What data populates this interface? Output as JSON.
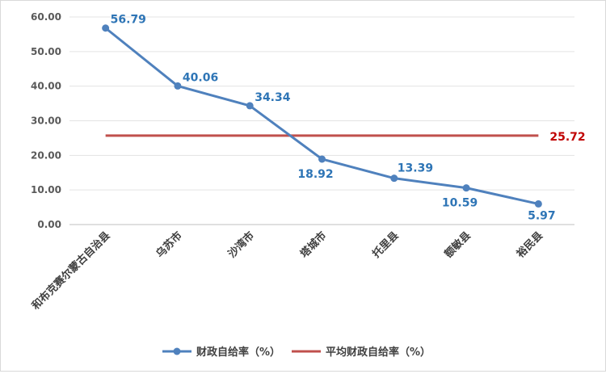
{
  "chart_data": {
    "type": "line",
    "categories": [
      "和布克赛尔蒙古自治县",
      "乌苏市",
      "沙湾市",
      "塔城市",
      "托里县",
      "额敏县",
      "裕民县"
    ],
    "series": [
      {
        "name": "财政自给率（%）",
        "values": [
          56.79,
          40.06,
          34.34,
          18.92,
          13.39,
          10.59,
          5.97
        ],
        "color": "#4f81bd",
        "labels": [
          "56.79",
          "40.06",
          "34.34",
          "18.92",
          "13.39",
          "10.59",
          "5.97"
        ]
      },
      {
        "name": "平均财政自给率（%）",
        "values": [
          25.72,
          25.72,
          25.72,
          25.72,
          25.72,
          25.72,
          25.72
        ],
        "color": "#c0504d",
        "end_label": "25.72"
      }
    ],
    "yticks": [
      "0.00",
      "10.00",
      "20.00",
      "30.00",
      "40.00",
      "50.00",
      "60.00"
    ],
    "ylim": [
      0,
      60
    ],
    "grid": true,
    "legend_position": "bottom",
    "data_label_color": "#2e75b6",
    "average_label_color": "#c00000"
  }
}
